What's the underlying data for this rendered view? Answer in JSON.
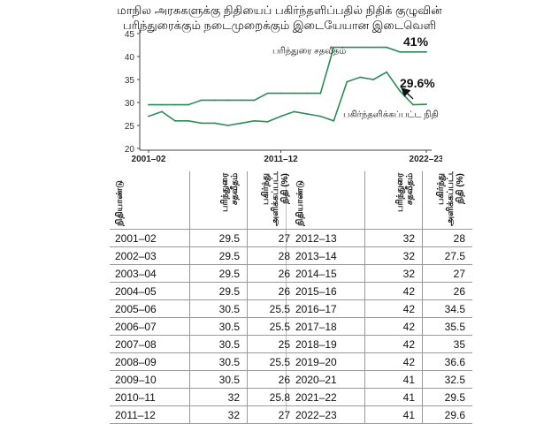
{
  "header": {
    "line1": "மாநில அரசுகளுக்கு நிதியைப் பகிர்ந்தளிப்பதில் நிதிக் குழுவின்",
    "line2": "பரிந்துரைக்கும் நடைமுறைக்கும் இடையேயான இடைவெளி"
  },
  "chart_data": {
    "type": "line",
    "title": "",
    "xlabel": "",
    "ylabel": "",
    "x": [
      "2001–02",
      "2002–03",
      "2003–04",
      "2004–05",
      "2005–06",
      "2006–07",
      "2007–08",
      "2008–09",
      "2009–10",
      "2010–11",
      "2011–12",
      "2012–13",
      "2013–14",
      "2014–15",
      "2015–16",
      "2016–17",
      "2017–18",
      "2018–19",
      "2019–20",
      "2020–21",
      "2021–22",
      "2022–23"
    ],
    "x_tick_labels": [
      "2001–02",
      "2011–12",
      "2022–23"
    ],
    "y_ticks": [
      20,
      25,
      30,
      35,
      40,
      45
    ],
    "ylim": [
      20,
      45
    ],
    "grid": false,
    "series": [
      {
        "name": "பரிந்துரை சதவீதம்",
        "color": "#2e8b57",
        "values": [
          29.5,
          29.5,
          29.5,
          29.5,
          30.5,
          30.5,
          30.5,
          30.5,
          30.5,
          32,
          32,
          32,
          32,
          32,
          42,
          42,
          42,
          42,
          42,
          41,
          41,
          41
        ]
      },
      {
        "name": "பகிர்ந்தளிக்கப்பட்ட நிதி",
        "color": "#2e8b57",
        "values": [
          27,
          28,
          26,
          26,
          25.5,
          25.5,
          25,
          25.5,
          26,
          25.8,
          27,
          28,
          27.5,
          27,
          26,
          34.5,
          35.5,
          35,
          36.6,
          32.5,
          29.5,
          29.6
        ]
      }
    ],
    "annotations": [
      {
        "text": "41%",
        "series": 0
      },
      {
        "text": "29.6%",
        "series": 1
      }
    ]
  },
  "table": {
    "headers": [
      "நிதியாண்டு",
      "பரிந்துரை சதவீதம்",
      "பகிர்ந்து அளிக்கப்பட்ட நிதி (%)"
    ],
    "left": [
      [
        "2001–02",
        "29.5",
        "27"
      ],
      [
        "2002–03",
        "29.5",
        "28"
      ],
      [
        "2003–04",
        "29.5",
        "26"
      ],
      [
        "2004–05",
        "29.5",
        "26"
      ],
      [
        "2005–06",
        "30.5",
        "25.5"
      ],
      [
        "2006–07",
        "30.5",
        "25.5"
      ],
      [
        "2007–08",
        "30.5",
        "25"
      ],
      [
        "2008–09",
        "30.5",
        "25.5"
      ],
      [
        "2009–10",
        "30.5",
        "26"
      ],
      [
        "2010–11",
        "32",
        "25.8"
      ],
      [
        "2011–12",
        "32",
        "27"
      ]
    ],
    "right": [
      [
        "2012–13",
        "32",
        "28"
      ],
      [
        "2013–14",
        "32",
        "27.5"
      ],
      [
        "2014–15",
        "32",
        "27"
      ],
      [
        "2015–16",
        "42",
        "26"
      ],
      [
        "2016–17",
        "42",
        "34.5"
      ],
      [
        "2017–18",
        "42",
        "35.5"
      ],
      [
        "2018–19",
        "42",
        "35"
      ],
      [
        "2019–20",
        "42",
        "36.6"
      ],
      [
        "2020–21",
        "41",
        "32.5"
      ],
      [
        "2021–22",
        "41",
        "29.5"
      ],
      [
        "2022–23",
        "41",
        "29.6"
      ]
    ]
  }
}
